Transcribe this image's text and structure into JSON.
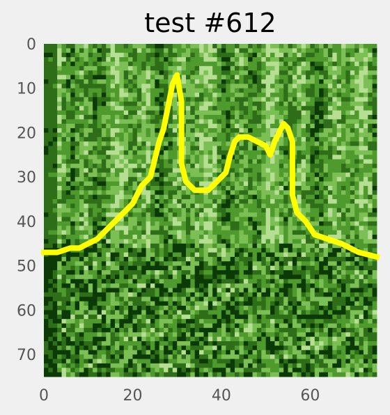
{
  "chart_data": {
    "type": "heatmap",
    "title": "test #612",
    "xlabel": "",
    "ylabel": "",
    "grid_size": 75,
    "xlim": [
      0,
      75
    ],
    "ylim": [
      75,
      0
    ],
    "x_ticks": [
      0,
      20,
      40,
      60
    ],
    "y_ticks": [
      0,
      10,
      20,
      30,
      40,
      50,
      60,
      70
    ],
    "colormap": [
      "#0b3a06",
      "#2f6e18",
      "#4f9a2c",
      "#7cbf55",
      "#b7df94"
    ],
    "grid": false,
    "overlay": {
      "name": "",
      "color": "#ffff00",
      "points": [
        [
          0,
          47
        ],
        [
          3,
          47
        ],
        [
          6,
          46
        ],
        [
          8,
          46
        ],
        [
          10,
          45
        ],
        [
          12,
          44
        ],
        [
          14,
          42
        ],
        [
          16,
          40
        ],
        [
          18,
          38
        ],
        [
          20,
          36
        ],
        [
          22,
          32
        ],
        [
          24,
          30
        ],
        [
          25,
          26
        ],
        [
          26,
          22
        ],
        [
          27,
          19
        ],
        [
          28,
          14
        ],
        [
          29,
          9
        ],
        [
          30,
          7
        ],
        [
          31,
          13
        ],
        [
          31,
          20
        ],
        [
          31,
          27
        ],
        [
          32,
          31
        ],
        [
          34,
          33
        ],
        [
          37,
          33
        ],
        [
          39,
          31
        ],
        [
          41,
          29
        ],
        [
          42,
          25
        ],
        [
          43,
          22
        ],
        [
          44,
          21
        ],
        [
          46,
          21
        ],
        [
          48,
          22
        ],
        [
          50,
          23
        ],
        [
          51,
          25
        ],
        [
          52,
          22
        ],
        [
          53,
          20
        ],
        [
          54,
          18
        ],
        [
          55,
          19
        ],
        [
          56,
          22
        ],
        [
          56,
          26
        ],
        [
          56,
          30
        ],
        [
          56,
          34
        ],
        [
          57,
          38
        ],
        [
          59,
          40
        ],
        [
          61,
          43
        ],
        [
          64,
          44
        ],
        [
          67,
          45
        ],
        [
          69,
          46
        ],
        [
          71,
          47
        ],
        [
          75,
          48
        ]
      ]
    }
  }
}
